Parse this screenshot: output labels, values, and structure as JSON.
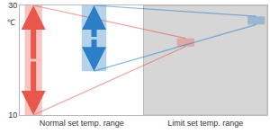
{
  "chart_data": {
    "type": "range",
    "categories": [
      "Normal set temp. range",
      "Limit set temp. range"
    ],
    "series": [
      {
        "color": "#e8574b",
        "low": [
          10,
          22.5
        ],
        "high": [
          30,
          24
        ]
      },
      {
        "color": "#2c7fc6",
        "low": [
          18,
          26.5
        ],
        "high": [
          30,
          28
        ]
      }
    ],
    "ylim": [
      10,
      30
    ],
    "yticks": [
      10,
      30
    ],
    "y_label": "℃",
    "grid": false
  }
}
